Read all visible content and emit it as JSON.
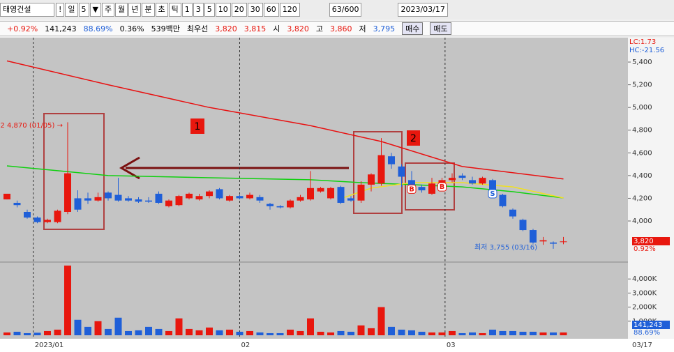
{
  "toolbar": {
    "stock": "태영건설",
    "buttons": [
      "!",
      "일",
      "5",
      "▼",
      "주",
      "월",
      "년",
      "분",
      "초",
      "틱",
      "1",
      "3",
      "5",
      "10",
      "20",
      "30",
      "60",
      "120"
    ],
    "count": "63/600",
    "date": "2023/03/17"
  },
  "infobar": {
    "items": [
      "+0.92%",
      "141,243",
      "88.69%",
      "0.36%",
      "539백만",
      "최우선",
      "3,820",
      "3,815",
      "시",
      "3,820",
      "고",
      "3,860",
      "저",
      "3,795"
    ],
    "buy": "매수",
    "sell": "매도"
  },
  "chart_data": {
    "type": "candlestick",
    "up_color": "#e8170e",
    "down_color": "#1f5fd8",
    "candles": [
      {
        "open": 4190,
        "high": 4240,
        "low": 4190,
        "close": 4240
      },
      {
        "open": 4160,
        "high": 4180,
        "low": 4120,
        "close": 4140
      },
      {
        "open": 4080,
        "high": 4100,
        "low": 4020,
        "close": 4030
      },
      {
        "open": 4030,
        "high": 4040,
        "low": 3980,
        "close": 3990
      },
      {
        "open": 3990,
        "high": 4020,
        "low": 3980,
        "close": 4010
      },
      {
        "open": 3990,
        "high": 4100,
        "low": 3980,
        "close": 4090
      },
      {
        "open": 4080,
        "high": 4870,
        "low": 4060,
        "close": 4420
      },
      {
        "open": 4200,
        "high": 4270,
        "low": 4080,
        "close": 4100
      },
      {
        "open": 4200,
        "high": 4250,
        "low": 4150,
        "close": 4180
      },
      {
        "open": 4180,
        "high": 4250,
        "low": 4170,
        "close": 4210
      },
      {
        "open": 4250,
        "high": 4260,
        "low": 4180,
        "close": 4200
      },
      {
        "open": 4230,
        "high": 4380,
        "low": 4170,
        "close": 4180
      },
      {
        "open": 4200,
        "high": 4220,
        "low": 4170,
        "close": 4180
      },
      {
        "open": 4190,
        "high": 4210,
        "low": 4160,
        "close": 4170
      },
      {
        "open": 4180,
        "high": 4210,
        "low": 4160,
        "close": 4170
      },
      {
        "open": 4240,
        "high": 4260,
        "low": 4150,
        "close": 4160
      },
      {
        "open": 4130,
        "high": 4190,
        "low": 4120,
        "close": 4180
      },
      {
        "open": 4140,
        "high": 4230,
        "low": 4130,
        "close": 4220
      },
      {
        "open": 4200,
        "high": 4250,
        "low": 4190,
        "close": 4240
      },
      {
        "open": 4190,
        "high": 4240,
        "low": 4180,
        "close": 4220
      },
      {
        "open": 4220,
        "high": 4270,
        "low": 4200,
        "close": 4260
      },
      {
        "open": 4280,
        "high": 4290,
        "low": 4190,
        "close": 4200
      },
      {
        "open": 4180,
        "high": 4230,
        "low": 4170,
        "close": 4220
      },
      {
        "open": 4220,
        "high": 4230,
        "low": 4190,
        "close": 4200
      },
      {
        "open": 4200,
        "high": 4250,
        "low": 4190,
        "close": 4230
      },
      {
        "open": 4210,
        "high": 4230,
        "low": 4160,
        "close": 4180
      },
      {
        "open": 4150,
        "high": 4160,
        "low": 4100,
        "close": 4130
      },
      {
        "open": 4130,
        "high": 4140,
        "low": 4110,
        "close": 4120
      },
      {
        "open": 4120,
        "high": 4190,
        "low": 4110,
        "close": 4180
      },
      {
        "open": 4180,
        "high": 4230,
        "low": 4170,
        "close": 4210
      },
      {
        "open": 4190,
        "high": 4440,
        "low": 4180,
        "close": 4290
      },
      {
        "open": 4260,
        "high": 4300,
        "low": 4250,
        "close": 4290
      },
      {
        "open": 4200,
        "high": 4300,
        "low": 4190,
        "close": 4290
      },
      {
        "open": 4300,
        "high": 4310,
        "low": 4150,
        "close": 4160
      },
      {
        "open": 4200,
        "high": 4220,
        "low": 4170,
        "close": 4180
      },
      {
        "open": 4180,
        "high": 4350,
        "low": 4160,
        "close": 4320
      },
      {
        "open": 4320,
        "high": 4420,
        "low": 4260,
        "close": 4410
      },
      {
        "open": 4330,
        "high": 4730,
        "low": 4310,
        "close": 4580
      },
      {
        "open": 4570,
        "high": 4600,
        "low": 4460,
        "close": 4500
      },
      {
        "open": 4480,
        "high": 4500,
        "low": 4300,
        "close": 4390
      },
      {
        "open": 4360,
        "high": 4440,
        "low": 4270,
        "close": 4280
      },
      {
        "open": 4300,
        "high": 4320,
        "low": 4250,
        "close": 4270
      },
      {
        "open": 4240,
        "high": 4380,
        "low": 4230,
        "close": 4330
      },
      {
        "open": 4300,
        "high": 4380,
        "low": 4290,
        "close": 4360
      },
      {
        "open": 4360,
        "high": 4420,
        "low": 4340,
        "close": 4380
      },
      {
        "open": 4400,
        "high": 4420,
        "low": 4360,
        "close": 4380
      },
      {
        "open": 4360,
        "high": 4390,
        "low": 4320,
        "close": 4330
      },
      {
        "open": 4330,
        "high": 4390,
        "low": 4320,
        "close": 4380
      },
      {
        "open": 4360,
        "high": 4370,
        "low": 4220,
        "close": 4240
      },
      {
        "open": 4230,
        "high": 4240,
        "low": 4120,
        "close": 4130
      },
      {
        "open": 4100,
        "high": 4110,
        "low": 4020,
        "close": 4040
      },
      {
        "open": 4010,
        "high": 4020,
        "low": 3910,
        "close": 3920
      },
      {
        "open": 3920,
        "high": 3930,
        "low": 3800,
        "close": 3810
      },
      {
        "open": 3820,
        "high": 3860,
        "low": 3790,
        "close": 3830
      },
      {
        "open": 3810,
        "high": 3820,
        "low": 3755,
        "close": 3800
      },
      {
        "open": 3820,
        "high": 3860,
        "low": 3795,
        "close": 3820
      }
    ],
    "ylim": [
      3644,
      5609
    ],
    "yticks": [
      {
        "value": 5400,
        "label": "5,400"
      },
      {
        "value": 5200,
        "label": "5,200"
      },
      {
        "value": 5000,
        "label": "5,000"
      },
      {
        "value": 4800,
        "label": "4,800"
      },
      {
        "value": 4600,
        "label": "4,600"
      },
      {
        "value": 4400,
        "label": "4,400"
      },
      {
        "value": 4200,
        "label": "4,200"
      },
      {
        "value": 4000,
        "label": "4,000"
      }
    ],
    "ma": [
      {
        "color": "#e81010",
        "x": [
          0,
          10,
          20,
          30,
          37,
          45,
          55
        ],
        "values": [
          5410,
          5200,
          5000,
          4840,
          4700,
          4480,
          4370
        ]
      },
      {
        "color": "#10d010",
        "x": [
          0,
          5,
          10,
          20,
          30,
          35,
          40,
          45,
          50,
          55
        ],
        "values": [
          4485,
          4443,
          4400,
          4381,
          4363,
          4338,
          4320,
          4300,
          4258,
          4203
        ]
      },
      {
        "color": "#f0e020",
        "x": [
          33,
          36,
          40,
          45,
          50,
          55
        ],
        "values": [
          4197,
          4290,
          4338,
          4338,
          4300,
          4203
        ]
      }
    ],
    "volumes": [
      200,
      250,
      150,
      180,
      300,
      400,
      4950,
      1100,
      600,
      1000,
      450,
      1250,
      300,
      350,
      600,
      450,
      300,
      1200,
      450,
      350,
      550,
      350,
      400,
      250,
      300,
      200,
      150,
      150,
      400,
      300,
      1200,
      250,
      200,
      300,
      250,
      700,
      500,
      2000,
      600,
      400,
      350,
      250,
      200,
      200,
      300,
      150,
      200,
      150,
      400,
      300,
      300,
      250,
      250,
      200,
      200,
      200
    ],
    "vol_ylim": [
      0,
      5100
    ],
    "vol_yticks": [
      {
        "value": 4000,
        "label": "4,000K"
      },
      {
        "value": 3000,
        "label": "3,000K"
      },
      {
        "value": 2000,
        "label": "2,000K"
      },
      {
        "value": 1000,
        "label": "1,000K"
      }
    ],
    "x_labels": [
      {
        "index": 2.6,
        "label": "2023/01"
      },
      {
        "index": 23,
        "label": "02"
      },
      {
        "index": 43.3,
        "label": "03"
      }
    ],
    "last_date": "03/17",
    "signals": [
      {
        "index": 40,
        "label": "B"
      },
      {
        "index": 43,
        "label": "B"
      },
      {
        "index": 48,
        "label": "S"
      }
    ],
    "price_label": "3,820",
    "change_label": "0.92%",
    "volume_label": "141,243",
    "ratio_label": "88.69%",
    "lc": "LC:1.73",
    "hc": "HC:-21.56",
    "high_note": "2 4,870 (01/05) →",
    "low_note": "최저 3,755 (03/16)",
    "box_labels": [
      "1",
      "2"
    ]
  }
}
